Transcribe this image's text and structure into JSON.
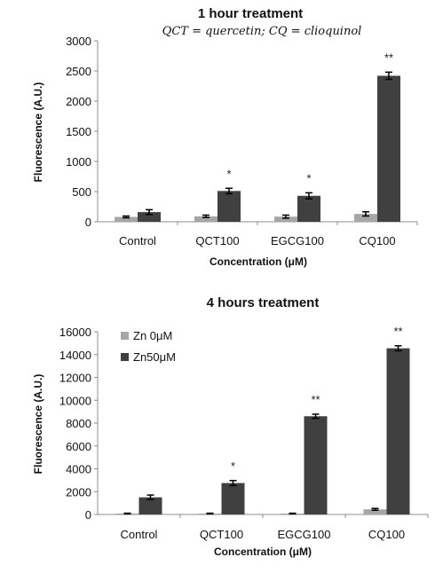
{
  "colors": {
    "zn0": "#a6a6a6",
    "zn50": "#404040",
    "axis": "#8c8c8c",
    "error": "#000000"
  },
  "chart_data": [
    {
      "type": "bar",
      "title": "1 hour treatment",
      "subtitle": "QCT = quercetin; CQ = clioquinol",
      "xlabel": "Concentration (μM)",
      "ylabel": "Fluorescence (A.U.)",
      "ylim": [
        0,
        3000
      ],
      "yticks": [
        0,
        500,
        1000,
        1500,
        2000,
        2500,
        3000
      ],
      "categories": [
        "Control",
        "QCT100",
        "EGCG100",
        "CQ100"
      ],
      "grid": false,
      "legend": null,
      "series": [
        {
          "values": [
            80,
            90,
            85,
            130
          ],
          "errors": [
            15,
            20,
            25,
            35
          ]
        },
        {
          "values": [
            160,
            510,
            430,
            2420
          ],
          "errors": [
            40,
            45,
            50,
            60
          ]
        }
      ],
      "annotations": [
        "",
        "*",
        "*",
        "**"
      ]
    },
    {
      "type": "bar",
      "title": "4 hours treatment",
      "xlabel": "Concentration (μM)",
      "ylabel": "Fluorescence (A.U.)",
      "ylim": [
        0,
        16000
      ],
      "yticks": [
        0,
        2000,
        4000,
        6000,
        8000,
        10000,
        12000,
        14000,
        16000
      ],
      "categories": [
        "Control",
        "QCT100",
        "EGCG100",
        "CQ100"
      ],
      "grid": false,
      "legend": "top-left",
      "series": [
        {
          "name": "Zn 0μM",
          "values": [
            80,
            80,
            80,
            450
          ],
          "errors": [
            30,
            30,
            30,
            80
          ]
        },
        {
          "name": "Zn50μM",
          "values": [
            1500,
            2750,
            8600,
            14550
          ],
          "errors": [
            200,
            220,
            180,
            220
          ]
        }
      ],
      "annotations": [
        "",
        "*",
        "**",
        "**"
      ]
    }
  ]
}
